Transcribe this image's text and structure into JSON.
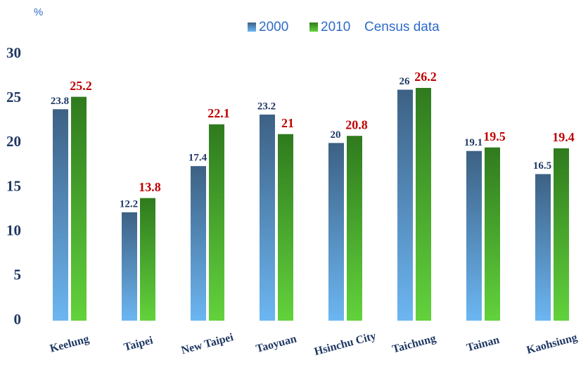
{
  "chart_data": {
    "type": "bar",
    "y_label": "%",
    "annotation": "Census data",
    "categories": [
      "Keelung",
      "Taipei",
      "New Taipei",
      "Taoyuan",
      "Hsinchu City",
      "Taichung",
      "Tainan",
      "Kaohsiung"
    ],
    "series": [
      {
        "name": "2000",
        "color": "#3d6184",
        "color_light": "#6cb6f2",
        "label_color": "#1f3864",
        "values": [
          23.8,
          12.2,
          17.4,
          23.2,
          20,
          26,
          19.1,
          16.5
        ]
      },
      {
        "name": "2010",
        "color": "#2f7a1e",
        "color_light": "#62d23c",
        "label_color": "#c00000",
        "values": [
          25.2,
          13.8,
          22.1,
          21,
          20.8,
          26.2,
          19.5,
          19.4
        ]
      }
    ],
    "ylim": [
      0,
      30
    ],
    "yticks": [
      0,
      5,
      10,
      15,
      20,
      25,
      30
    ],
    "grid": false,
    "legend": "top"
  }
}
